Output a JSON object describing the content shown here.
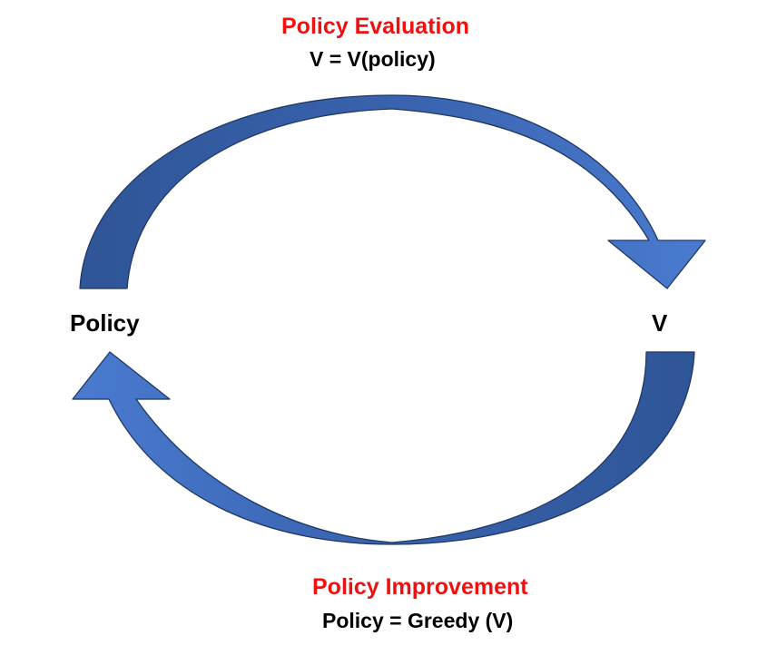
{
  "top": {
    "heading": "Policy Evaluation",
    "formula": "V = V(policy)"
  },
  "bottom": {
    "heading": "Policy Improvement",
    "formula": "Policy = Greedy (V)"
  },
  "nodes": {
    "left": "Policy",
    "right": "V"
  },
  "colors": {
    "heading": "#ee1111",
    "text": "#000000",
    "arrow_light": "#4472c4",
    "arrow_dark": "#2f5597",
    "arrow_outline": "#1f3864"
  }
}
